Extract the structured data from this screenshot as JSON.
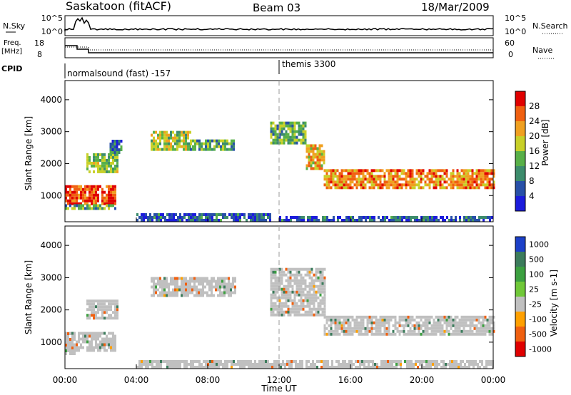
{
  "header": {
    "station": "Saskatoon (fitACF)",
    "beam": "Beam 03",
    "date": "18/Mar/2009"
  },
  "noise_panel": {
    "left_label": "N.Sky",
    "left_ticks": [
      "10^5",
      "10^0"
    ],
    "right_label": "N.Search",
    "right_ticks": [
      "10^5",
      "10^0"
    ]
  },
  "freq_panel": {
    "left_label_1": "Freq.",
    "left_label_2": "[MHz]",
    "left_ticks": [
      "18",
      "8"
    ],
    "right_label": "Nave",
    "right_ticks": [
      "60",
      "0"
    ]
  },
  "cpid_panel": {
    "label": "CPID",
    "programs": [
      {
        "name": "normalsound (fast) -157",
        "start_hour": 0,
        "end_hour": 12
      },
      {
        "name": "themis 3300",
        "start_hour": 12,
        "end_hour": 24
      }
    ]
  },
  "colors": {
    "power_scale": [
      "#1c1cdc",
      "#2850a8",
      "#3c8c6c",
      "#58b048",
      "#c8d028",
      "#f0a020",
      "#f06010",
      "#e00000"
    ],
    "velocity_scale": [
      "#1c40c8",
      "#3c7c5c",
      "#3ca040",
      "#70c838",
      "#c0c0c0",
      "#ffa000",
      "#f06010",
      "#e00000"
    ],
    "dashed_line": "#999999"
  },
  "x_axis": {
    "label": "Time UT",
    "ticks": [
      "00:00",
      "04:00",
      "08:00",
      "12:00",
      "16:00",
      "20:00",
      "00:00"
    ]
  },
  "chart_data": [
    {
      "type": "heatmap",
      "title": "Power",
      "ylabel": "Slant Range [km]",
      "yticks": [
        "1000",
        "2000",
        "3000",
        "4000"
      ],
      "ylim": [
        180,
        4600
      ],
      "xlim": [
        0,
        24
      ],
      "colorbar_label": "Power [dB]",
      "colorbar_ticks": [
        "4",
        "8",
        "12",
        "16",
        "20",
        "24",
        "28"
      ],
      "value_range": [
        0,
        30
      ],
      "regions": [
        {
          "t0": 0.0,
          "t1": 2.8,
          "r0": 700,
          "r1": 1300,
          "value": 26
        },
        {
          "t0": 0.0,
          "t1": 2.8,
          "r0": 550,
          "r1": 720,
          "value": 12
        },
        {
          "t0": 1.2,
          "t1": 3.0,
          "r0": 1700,
          "r1": 2300,
          "value": 14
        },
        {
          "t0": 2.5,
          "t1": 3.2,
          "r0": 2300,
          "r1": 2700,
          "value": 8
        },
        {
          "t0": 4.8,
          "t1": 7.0,
          "r0": 2400,
          "r1": 3000,
          "value": 16
        },
        {
          "t0": 7.0,
          "t1": 9.5,
          "r0": 2400,
          "r1": 2700,
          "value": 12
        },
        {
          "t0": 11.5,
          "t1": 13.5,
          "r0": 2600,
          "r1": 3300,
          "value": 12
        },
        {
          "t0": 13.5,
          "t1": 14.5,
          "r0": 1800,
          "r1": 2600,
          "value": 20
        },
        {
          "t0": 14.5,
          "t1": 24.0,
          "r0": 1200,
          "r1": 1800,
          "value": 22
        },
        {
          "t0": 4.0,
          "t1": 11.5,
          "r0": 180,
          "r1": 420,
          "value": 6
        },
        {
          "t0": 12.0,
          "t1": 24.0,
          "r0": 180,
          "r1": 350,
          "value": 6
        }
      ]
    },
    {
      "type": "heatmap",
      "title": "Velocity",
      "ylabel": "Slant Range [km]",
      "yticks": [
        "1000",
        "2000",
        "3000",
        "4000"
      ],
      "ylim": [
        180,
        4600
      ],
      "xlim": [
        0,
        24
      ],
      "colorbar_label": "Velocity [m s-1]",
      "colorbar_ticks": [
        "1000",
        "500",
        "100",
        "25",
        "-25",
        "-100",
        "-500",
        "-1000"
      ],
      "regions": [
        {
          "t0": 0.0,
          "t1": 2.8,
          "r0": 700,
          "r1": 1300,
          "value": 0
        },
        {
          "t0": 0.0,
          "t1": 0.6,
          "r0": 600,
          "r1": 1300,
          "value": -250
        },
        {
          "t0": 1.2,
          "t1": 3.0,
          "r0": 1700,
          "r1": 2300,
          "value": 0
        },
        {
          "t0": 4.8,
          "t1": 9.5,
          "r0": 2400,
          "r1": 3000,
          "value": 0
        },
        {
          "t0": 11.5,
          "t1": 14.5,
          "r0": 1800,
          "r1": 3300,
          "value": 0
        },
        {
          "t0": 14.5,
          "t1": 24.0,
          "r0": 1200,
          "r1": 1800,
          "value": 0
        },
        {
          "t0": 4.0,
          "t1": 24.0,
          "r0": 180,
          "r1": 420,
          "value": -60
        }
      ]
    }
  ]
}
